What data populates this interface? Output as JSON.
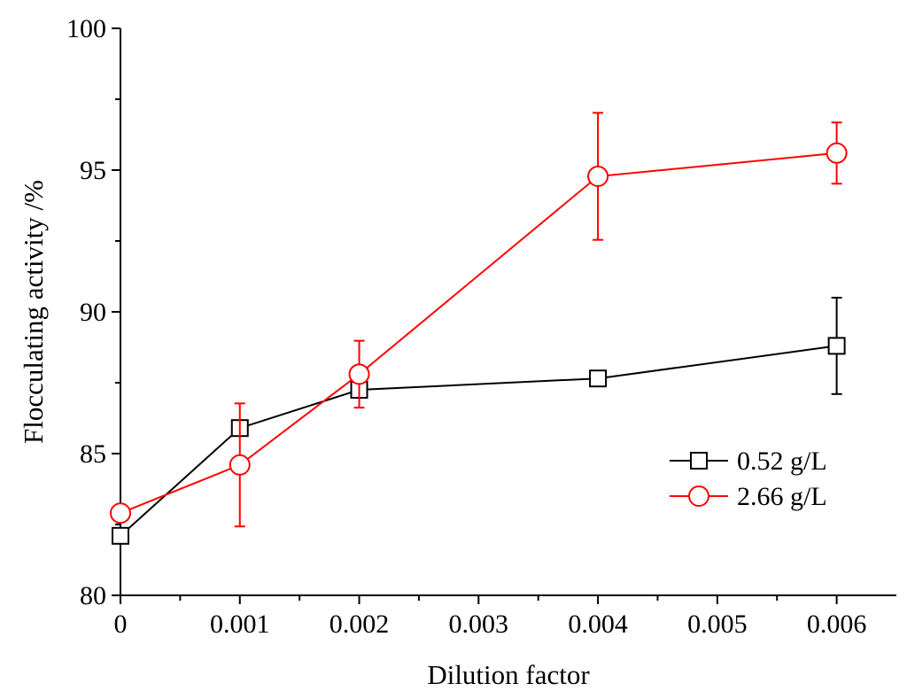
{
  "chart_data": {
    "type": "line",
    "title": "",
    "xlabel": "Dilution factor",
    "ylabel": "Flocculating activity /%",
    "xlim": [
      0,
      0.0065
    ],
    "ylim": [
      80,
      100
    ],
    "x_ticks": [
      0,
      0.001,
      0.002,
      0.003,
      0.004,
      0.005,
      0.006
    ],
    "x_tick_labels": [
      "0",
      "0.001",
      "0.002",
      "0.003",
      "0.004",
      "0.005",
      "0.006"
    ],
    "y_ticks": [
      80,
      85,
      90,
      95,
      100
    ],
    "y_tick_labels": [
      "80",
      "85",
      "90",
      "95",
      "100"
    ],
    "grid": false,
    "legend_position": "right",
    "series": [
      {
        "name": "0.52 g/L",
        "color": "#000000",
        "marker": "square",
        "x": [
          0,
          0.001,
          0.002,
          0.004,
          0.006
        ],
        "values": [
          82.1,
          85.9,
          87.25,
          87.65,
          88.8
        ],
        "errors": [
          0.1,
          0.1,
          0.1,
          0.15,
          1.7
        ]
      },
      {
        "name": "2.66 g/L",
        "color": "#ff0000",
        "marker": "circle",
        "x": [
          0,
          0.001,
          0.002,
          0.004,
          0.006
        ],
        "values": [
          82.9,
          84.6,
          87.8,
          94.78,
          95.6
        ],
        "errors": [
          0.1,
          2.17,
          1.18,
          2.24,
          1.08
        ]
      }
    ]
  }
}
